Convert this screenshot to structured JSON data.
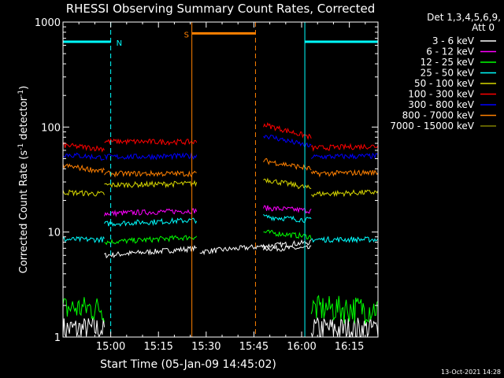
{
  "chart_data": {
    "type": "line",
    "title": "RHESSI Observing Summary Count Rates, Corrected",
    "xlabel": "Start Time (05-Jan-09 14:45:02)",
    "ylabel_main": "Corrected Count Rate (s",
    "ylabel_sup1": "-1",
    "ylabel_mid": " detector",
    "ylabel_sup2": "-1",
    "ylabel_end": ")",
    "yscale": "log",
    "ylim": [
      1,
      1000
    ],
    "xlim_minutes": [
      0,
      99
    ],
    "x_tick_labels": [
      "15:00",
      "15:15",
      "15:30",
      "15:45",
      "16:00",
      "16:15"
    ],
    "x_tick_minutes": [
      15,
      30,
      45,
      60,
      75,
      90
    ],
    "y_tick_labels": [
      "1",
      "10",
      "100",
      "1000"
    ],
    "y_tick_values": [
      1,
      10,
      100,
      1000
    ],
    "legend": {
      "placement": "right",
      "header1": "Det 1,3,4,5,6,9,",
      "header2": "Att 0"
    },
    "series": [
      {
        "name": "3 - 6 keV",
        "color": "#ffffff",
        "segments": [
          [
            0,
            1.2,
            1.2
          ],
          [
            13,
            6,
            7
          ],
          [
            43,
            6.5,
            8
          ],
          [
            63,
            7,
            7
          ],
          [
            78,
            1.2,
            1.2
          ]
        ]
      },
      {
        "name": "6 - 12 keV",
        "color": "#ff00ff",
        "segments": [
          [
            13,
            15,
            16
          ],
          [
            63,
            17,
            16
          ]
        ]
      },
      {
        "name": "12 - 25 keV",
        "color": "#00ff00",
        "segments": [
          [
            0,
            1.9,
            1.9
          ],
          [
            13,
            8,
            9
          ],
          [
            63,
            10,
            9
          ],
          [
            78,
            1.9,
            1.9
          ]
        ]
      },
      {
        "name": "25 - 50 keV",
        "color": "#00ffff",
        "segments": [
          [
            0,
            8.5,
            8.5
          ],
          [
            13,
            12,
            13
          ],
          [
            63,
            14,
            13
          ],
          [
            78,
            8.5,
            8.5
          ]
        ]
      },
      {
        "name": "50 - 100 keV",
        "color": "#d8d800",
        "segments": [
          [
            0,
            24,
            23
          ],
          [
            13,
            28,
            29
          ],
          [
            63,
            32,
            26
          ],
          [
            78,
            23,
            24
          ]
        ]
      },
      {
        "name": "100 - 300 keV",
        "color": "#ff0000",
        "segments": [
          [
            0,
            67,
            62
          ],
          [
            13,
            73,
            72
          ],
          [
            63,
            106,
            80
          ],
          [
            78,
            63,
            66
          ]
        ]
      },
      {
        "name": "300 - 800 keV",
        "color": "#0000ff",
        "segments": [
          [
            0,
            55,
            51
          ],
          [
            13,
            52,
            53
          ],
          [
            63,
            84,
            65
          ],
          [
            78,
            52,
            53
          ]
        ]
      },
      {
        "name": "800 - 7000 keV",
        "color": "#ff8000",
        "segments": [
          [
            0,
            43,
            38
          ],
          [
            13,
            36,
            36
          ],
          [
            63,
            48,
            40
          ],
          [
            78,
            36,
            37
          ]
        ]
      },
      {
        "name": "7000 - 15000 keV",
        "color": "#808000",
        "segments": []
      }
    ],
    "flags": [
      {
        "label": "N",
        "color": "#00ffff",
        "flag_level": 650,
        "ranges": [
          [
            0,
            15
          ],
          [
            76,
            99
          ]
        ]
      },
      {
        "label": "S",
        "color": "#ff8000",
        "flag_level": 780,
        "ranges": [
          [
            40.5,
            60.5
          ]
        ]
      }
    ]
  },
  "footer": {
    "timestamp": "13-Oct-2021 14:28"
  }
}
